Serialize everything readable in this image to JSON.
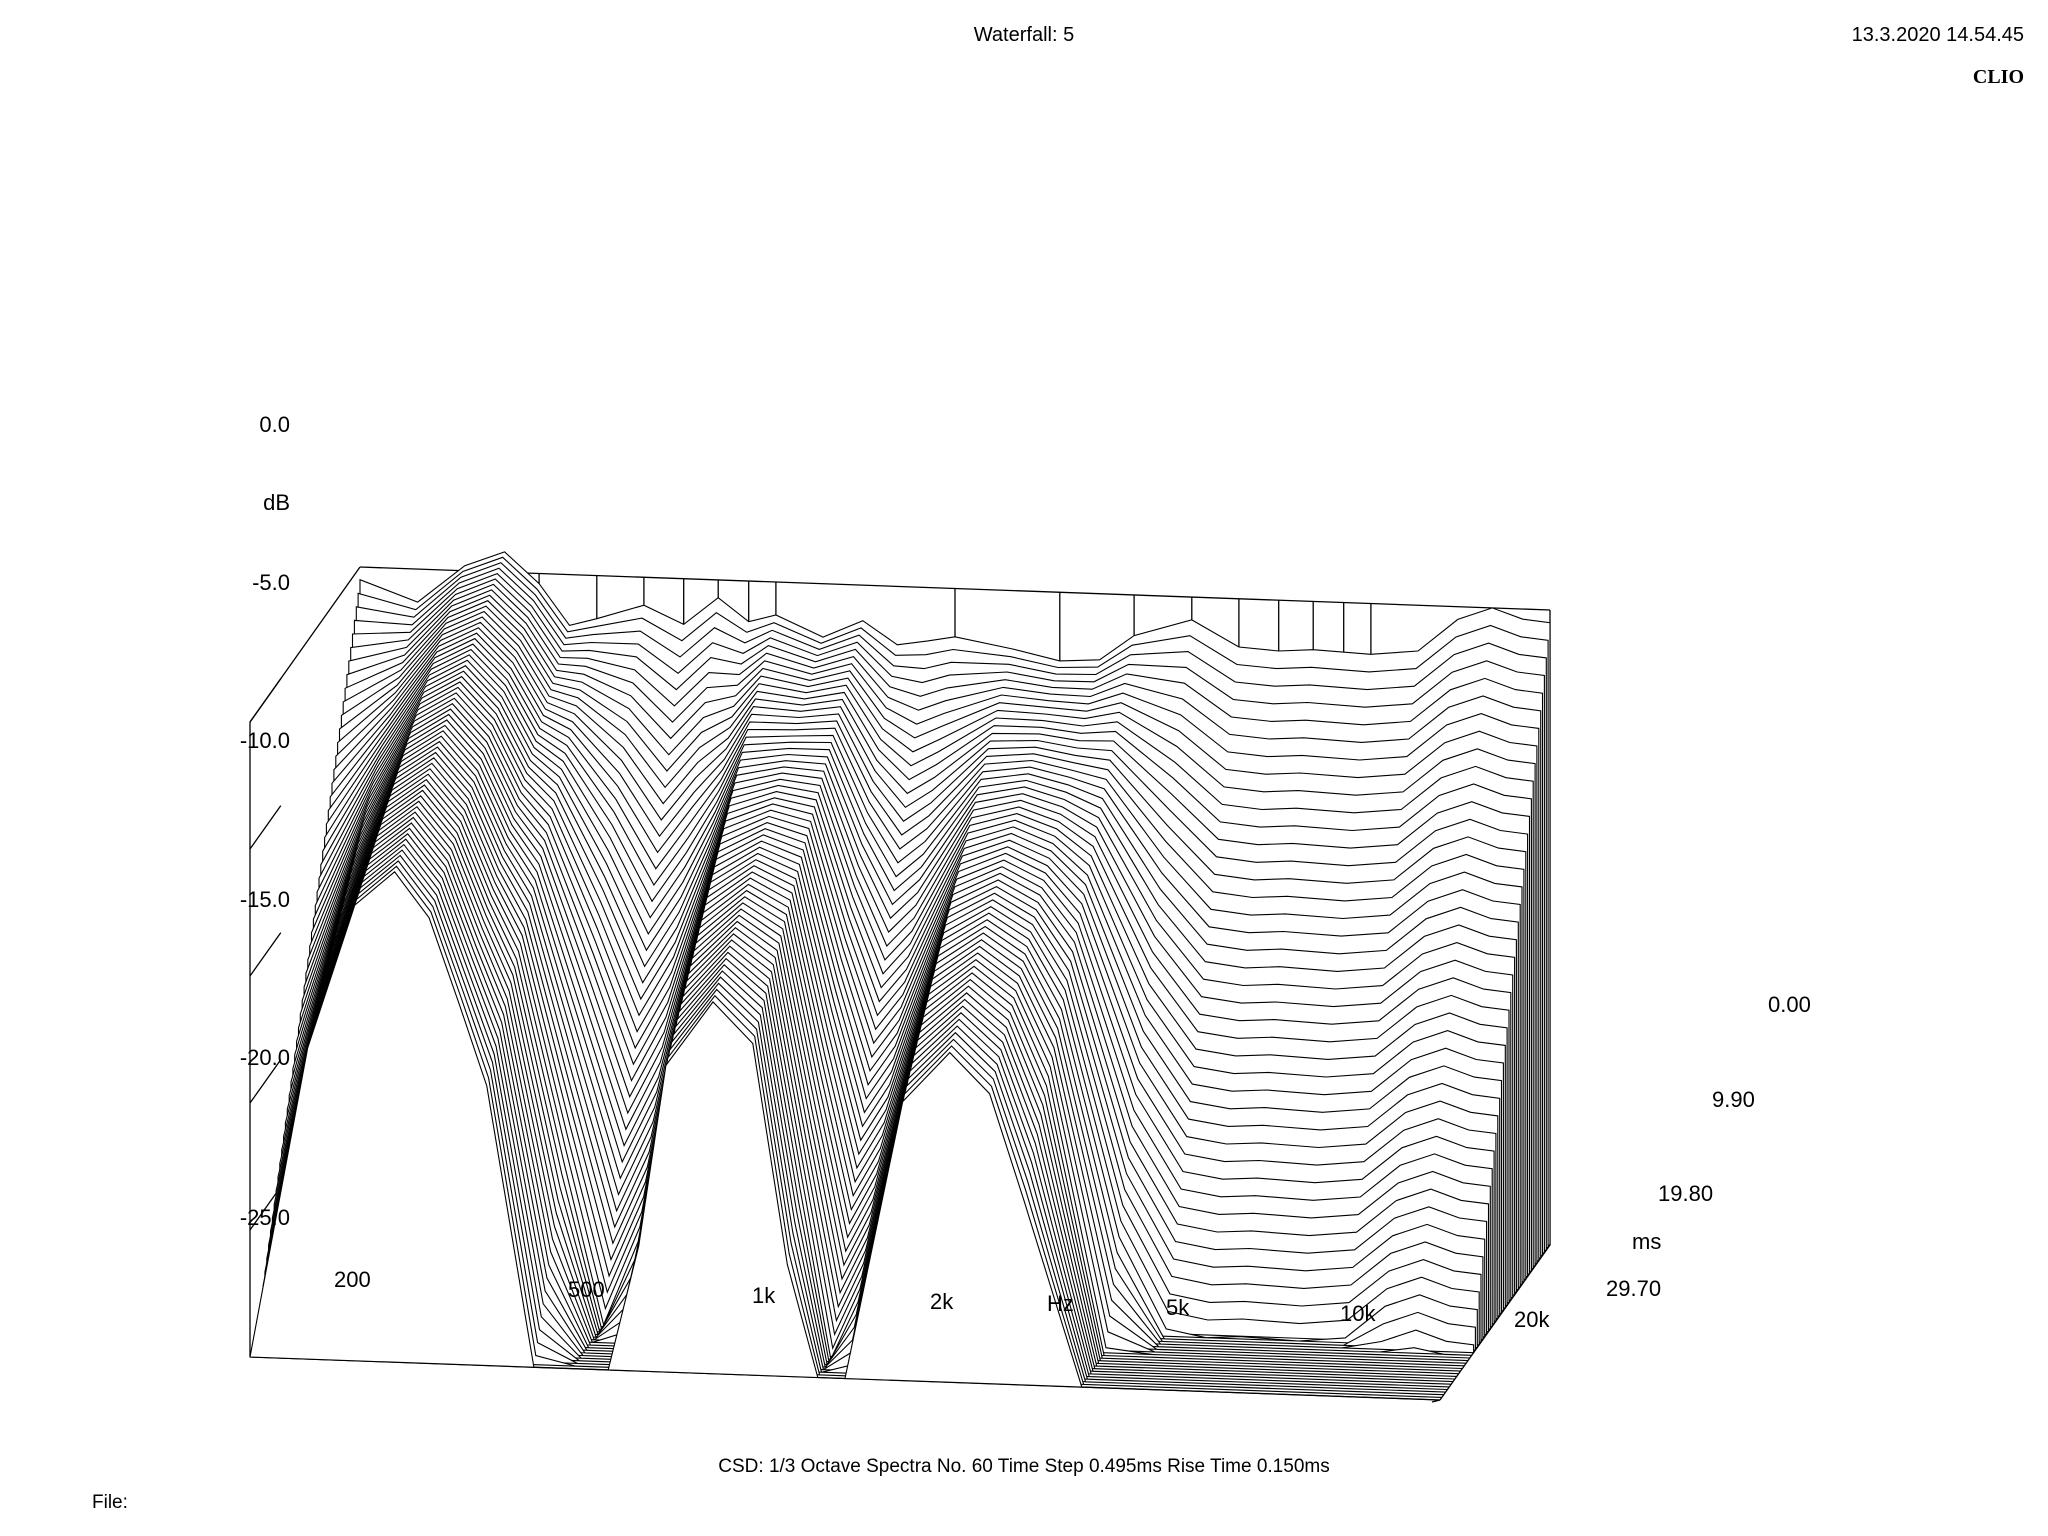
{
  "header": {
    "title": "Waterfall: 5",
    "timestamp": "13.3.2020 14.54.45",
    "brand": "CLIO"
  },
  "footer": {
    "info": "CSD:    1/3 Octave    Spectra No. 60    Time Step 0.495ms    Rise Time 0.150ms",
    "file_label": "File:"
  },
  "chart_data": {
    "type": "waterfall",
    "title": "Waterfall: 5",
    "x_axis": {
      "label": "Hz",
      "scale": "log",
      "range": [
        200,
        20000
      ],
      "ticks": [
        {
          "value": 200,
          "label": "200"
        },
        {
          "value": 500,
          "label": "500"
        },
        {
          "value": 1000,
          "label": "1k"
        },
        {
          "value": 2000,
          "label": "2k"
        },
        {
          "value": 5000,
          "label": "5k"
        },
        {
          "value": 10000,
          "label": "10k"
        },
        {
          "value": 20000,
          "label": "20k"
        }
      ]
    },
    "y_axis": {
      "label": "dB",
      "range": [
        -25,
        0
      ],
      "ticks": [
        {
          "value": 0,
          "label": "0.0"
        },
        {
          "value": -5,
          "label": "-5.0"
        },
        {
          "value": -10,
          "label": "-10.0"
        },
        {
          "value": -15,
          "label": "-15.0"
        },
        {
          "value": -20,
          "label": "-20.0"
        },
        {
          "value": -25,
          "label": "-25.0"
        }
      ]
    },
    "z_axis": {
      "label": "ms",
      "range": [
        0,
        29.7
      ],
      "ticks": [
        {
          "value": 0,
          "label": "0.00"
        },
        {
          "value": 9.9,
          "label": "9.90"
        },
        {
          "value": 19.8,
          "label": "19.80"
        },
        {
          "value": 29.7,
          "label": "29.70"
        }
      ]
    },
    "spectra_count": 60,
    "time_step_ms": 0.495,
    "resolution": "1/3 Octave",
    "rise_time_ms": 0.15,
    "first_spectrum": {
      "freq_hz": [
        200,
        250,
        300,
        350,
        400,
        450,
        500,
        600,
        700,
        800,
        900,
        1000,
        1200,
        1400,
        1600,
        1800,
        2000,
        2500,
        3000,
        3500,
        4000,
        5000,
        6000,
        7000,
        8000,
        10000,
        12000,
        14000,
        16000,
        18000,
        20000
      ],
      "db": [
        -0.5,
        -1.3,
        0.2,
        0.8,
        -0.4,
        -2.0,
        -1.7,
        -1.1,
        -1.8,
        -0.7,
        -1.6,
        -1.3,
        -2.1,
        -1.4,
        -2.3,
        -2.1,
        -1.9,
        -2.3,
        -2.7,
        -2.6,
        -1.6,
        -0.9,
        -1.9,
        -2.0,
        -1.9,
        -2.0,
        -1.8,
        -0.5,
        0.0,
        -0.4,
        -0.5
      ]
    }
  }
}
